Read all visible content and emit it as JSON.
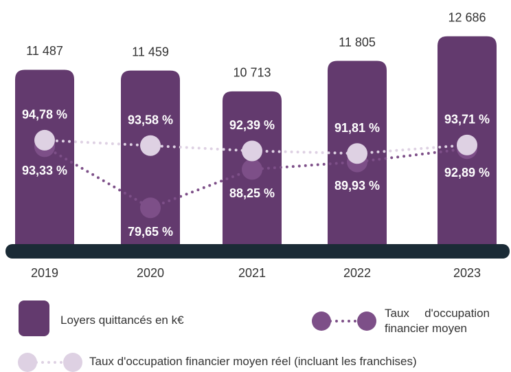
{
  "chart_data": {
    "type": "bar",
    "categories": [
      "2019",
      "2020",
      "2021",
      "2022",
      "2023"
    ],
    "ylim": [
      5000,
      13000
    ],
    "y2lim": [
      70,
      120
    ],
    "series": [
      {
        "name": "Loyers quittancés en k€",
        "type": "bar",
        "color": "#633a6e",
        "values": [
          11487,
          11459,
          10713,
          11805,
          12686
        ],
        "value_labels": [
          "11 487",
          "11 459",
          "10 713",
          "11 805",
          "12 686"
        ]
      },
      {
        "name": "Taux d'occupation financier moyen",
        "type": "line",
        "axis": "y2",
        "color": "#7d4f88",
        "values": [
          93.33,
          79.65,
          88.25,
          89.93,
          92.89
        ],
        "value_labels": [
          "93,33 %",
          "79,65 %",
          "88,25 %",
          "89,93 %",
          "92,89 %"
        ]
      },
      {
        "name": "Taux d'occupation financier moyen réel (incluant les franchises)",
        "type": "line",
        "axis": "y2",
        "color": "#ded1e3",
        "values": [
          94.78,
          93.58,
          92.39,
          91.81,
          93.71
        ],
        "value_labels": [
          "94,78 %",
          "93,58 %",
          "92,39 %",
          "91,81 %",
          "93,71 %"
        ]
      }
    ]
  }
}
